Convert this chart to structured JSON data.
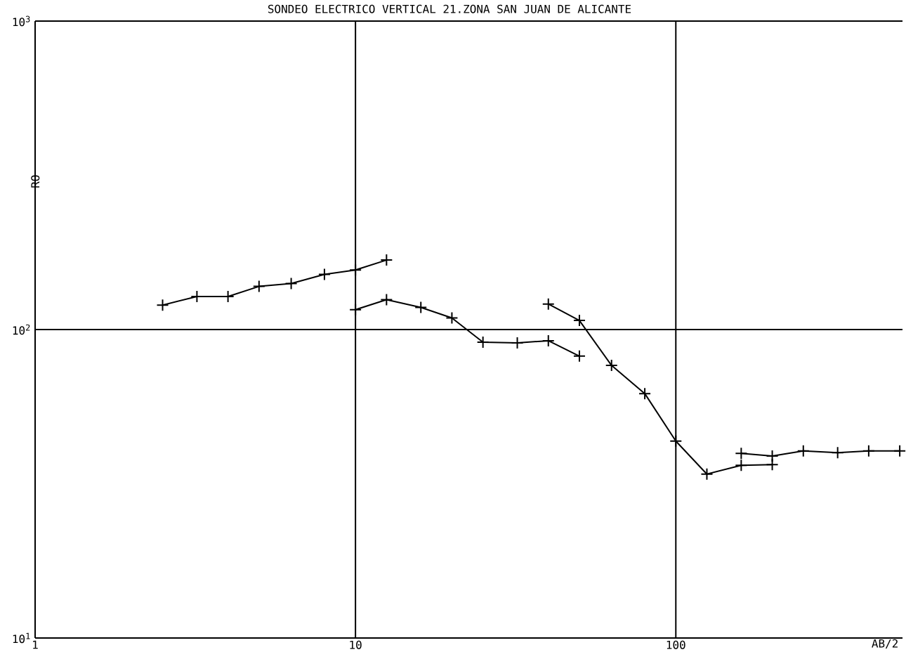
{
  "chart_data": {
    "type": "line",
    "title": "SONDEO ELECTRICO VERTICAL 21.ZONA SAN JUAN DE ALICANTE",
    "xlabel": "AB/2",
    "ylabel": "RO",
    "series": [
      {
        "color": "#000000",
        "x": [
          2.5,
          3.2,
          4,
          5,
          6.3,
          8,
          10,
          12.5
        ],
        "values": [
          120,
          128,
          128,
          138,
          141,
          151,
          156,
          168
        ]
      },
      {
        "color": "#000000",
        "x": [
          10,
          12.5,
          16,
          20,
          25,
          32,
          40,
          50
        ],
        "values": [
          116,
          125,
          118,
          109,
          91,
          90.5,
          92,
          82
        ]
      },
      {
        "color": "#000000",
        "x": [
          40,
          50,
          63,
          80,
          100,
          125,
          160,
          200
        ],
        "values": [
          121,
          107,
          76.5,
          62,
          43.5,
          34,
          36.3,
          36.5
        ]
      },
      {
        "color": "#000000",
        "x": [
          160,
          200,
          250,
          320,
          400,
          500
        ],
        "values": [
          39.7,
          38.9,
          40.4,
          39.9,
          40.4,
          40.4
        ]
      }
    ],
    "log": "xy",
    "xlim": [
      1,
      510
    ],
    "ylim": [
      10,
      1000
    ],
    "xticks": [
      1,
      10,
      100
    ],
    "yticks": [
      {
        "value": 10,
        "label": "10$^{1}$"
      },
      {
        "value": 100,
        "label": "10$^{2}$"
      },
      {
        "value": 1000,
        "label": "10$^{3}$"
      }
    ],
    "grid": true,
    "legend": false,
    "marker": "cross",
    "line_style": "solid"
  }
}
